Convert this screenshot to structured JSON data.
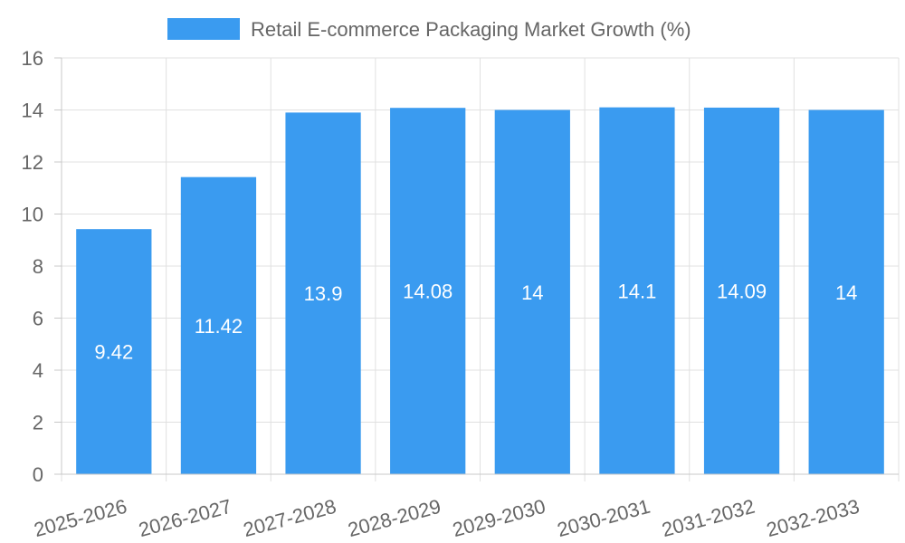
{
  "chart_data": {
    "type": "bar",
    "title": "",
    "xlabel": "",
    "ylabel": "",
    "categories": [
      "2025-2026",
      "2026-2027",
      "2027-2028",
      "2028-2029",
      "2029-2030",
      "2030-2031",
      "2031-2032",
      "2032-2033"
    ],
    "series": [
      {
        "name": "Retail E-commerce Packaging Market Growth (%)",
        "values": [
          9.42,
          11.42,
          13.9,
          14.08,
          14,
          14.1,
          14.09,
          14
        ]
      }
    ],
    "data_labels": [
      "9.42",
      "11.42",
      "13.9",
      "14.08",
      "14",
      "14.1",
      "14.09",
      "14"
    ],
    "ylim": [
      0,
      16
    ],
    "yticks": [
      0,
      2,
      4,
      6,
      8,
      10,
      12,
      14,
      16
    ],
    "grid": true,
    "legend_position": "top-center",
    "colors": {
      "bar": "#3a9bf0",
      "grid": "#e0e0e0",
      "axis": "#c8c8c8",
      "text": "#666666",
      "label": "#ffffff"
    }
  }
}
